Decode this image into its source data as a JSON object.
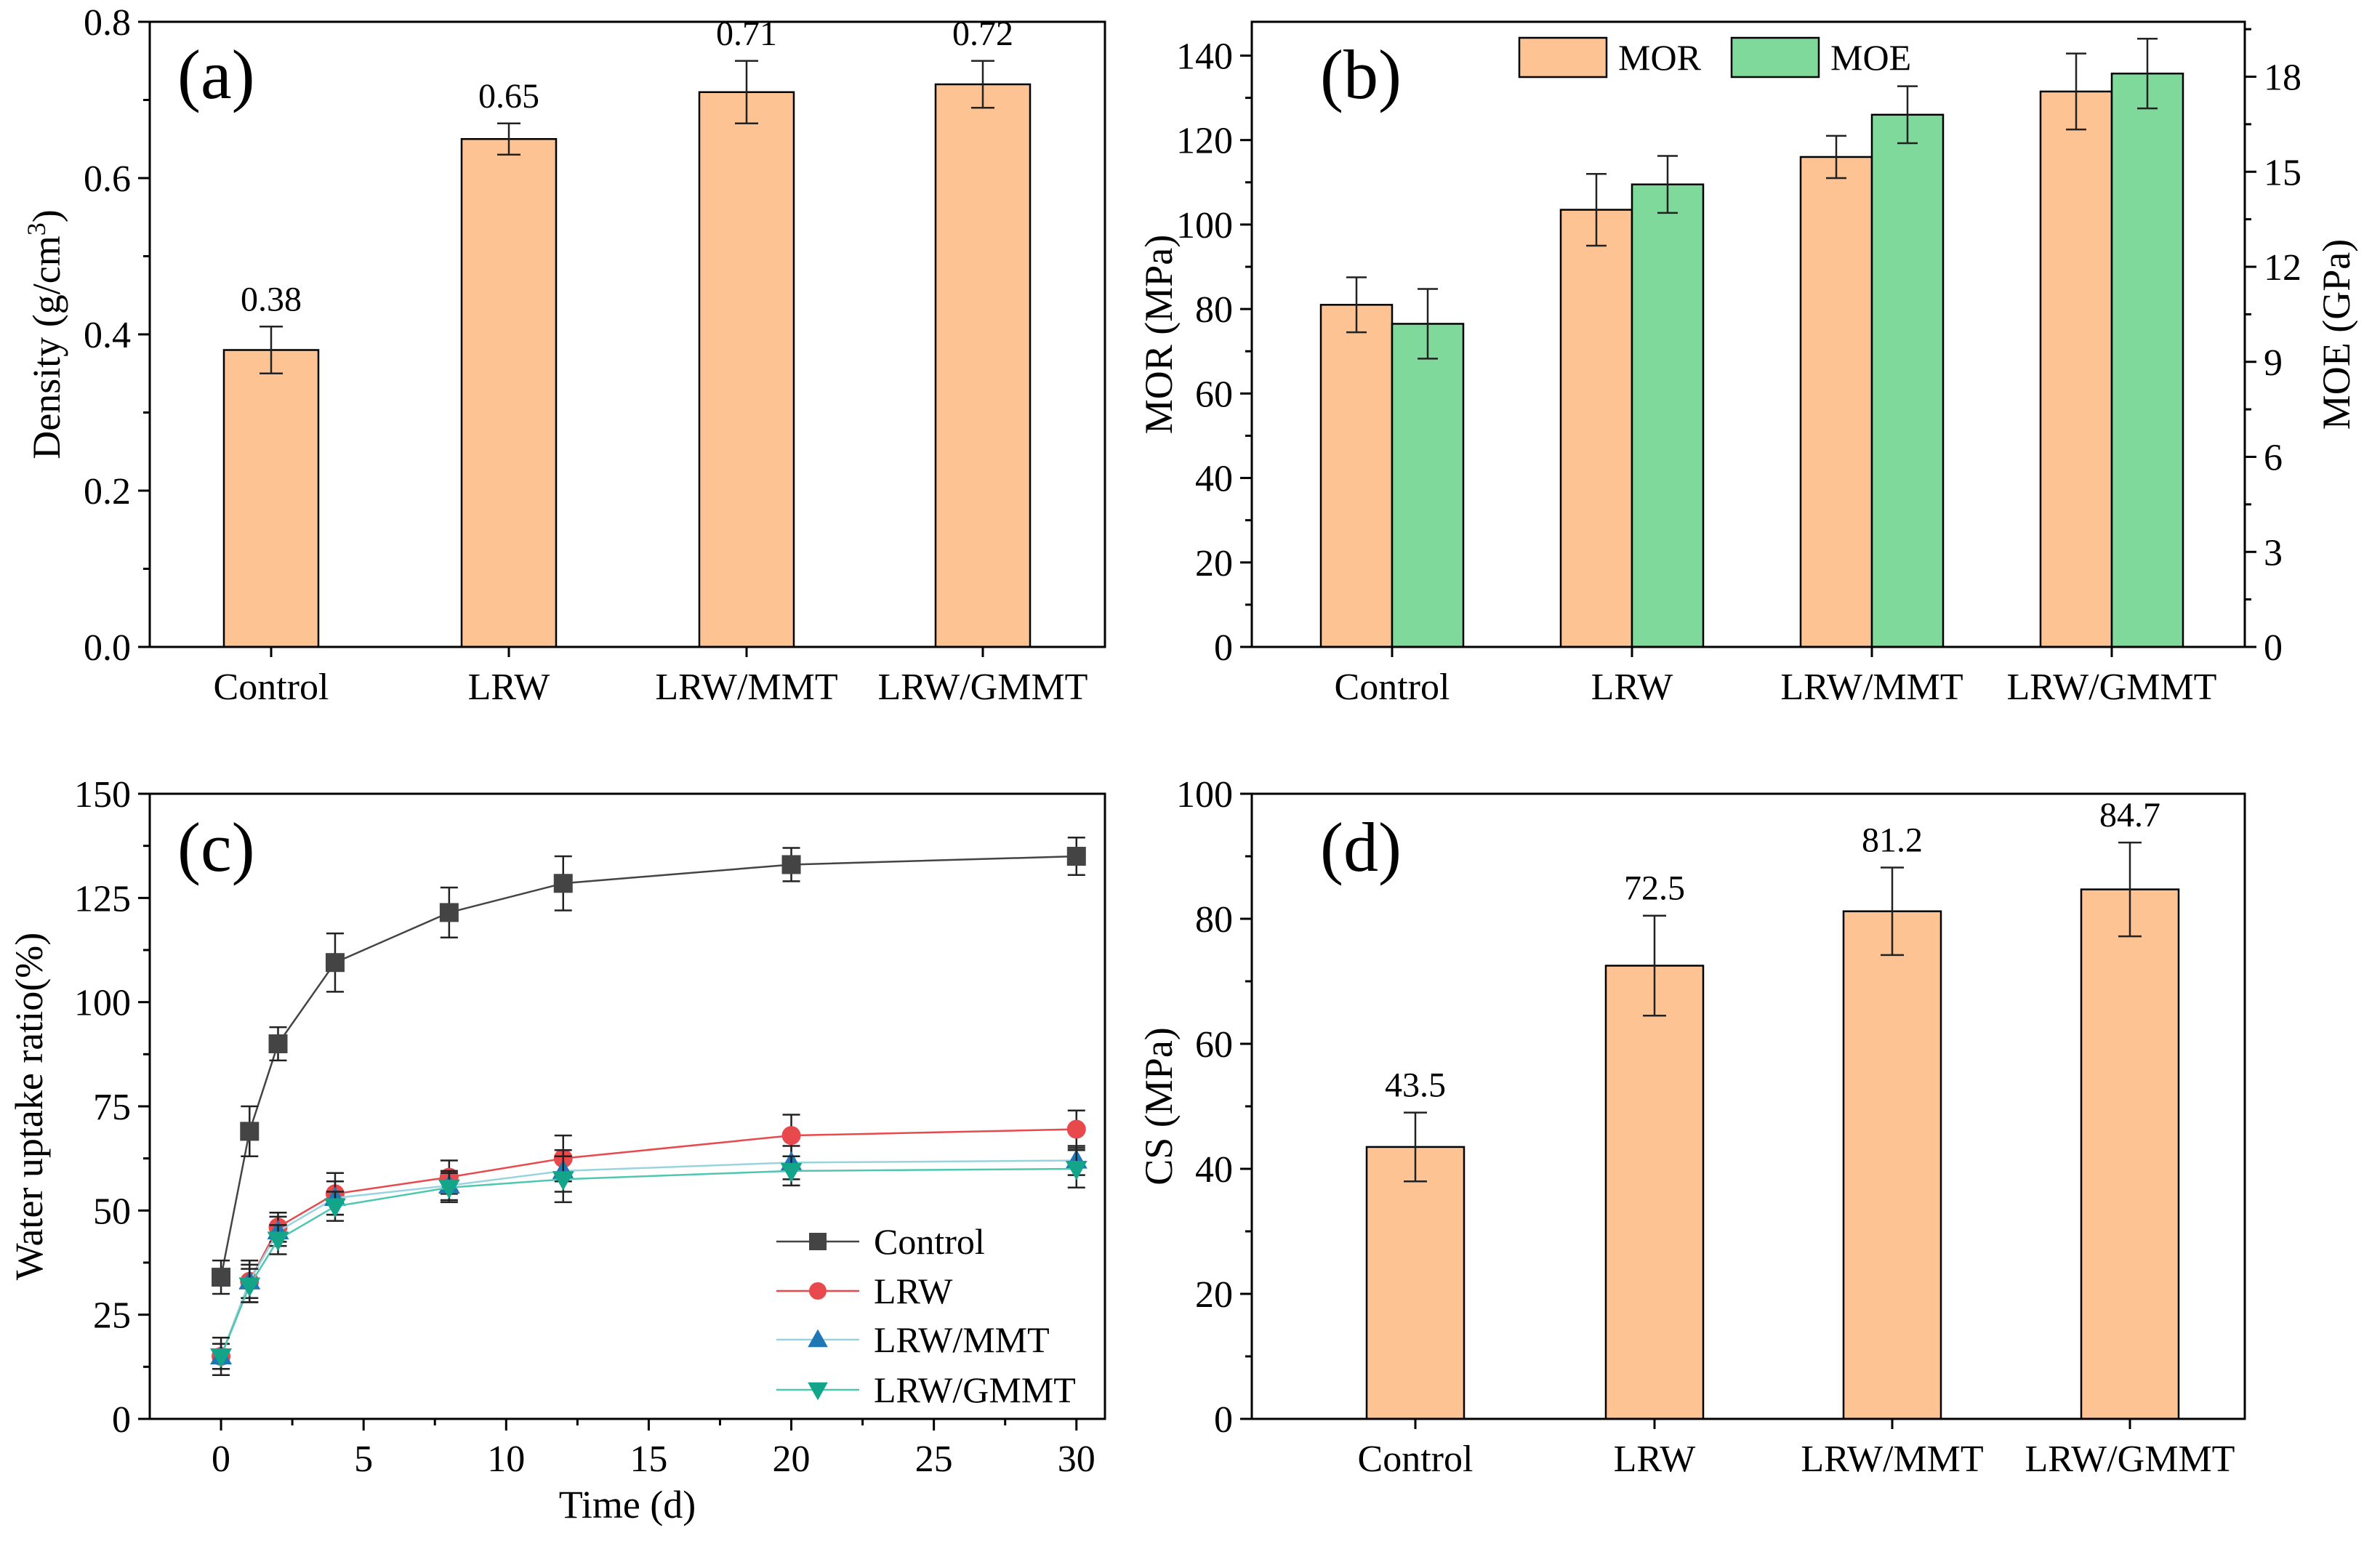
{
  "colors": {
    "bar_peach": "#FDC393",
    "bar_green": "#7ED99A",
    "control_line": "#444444",
    "lrw_line": "#E8494D",
    "lrwmmt_line": "#1F77B4",
    "lrwgmmt_line": "#12A58A",
    "lrwmmt_connector": "#9ad3e0",
    "lrwgmmt_connector": "#4fc7b0"
  },
  "chart_data": [
    {
      "id": "a",
      "type": "bar",
      "panel_label": "(a)",
      "categories": [
        "Control",
        "LRW",
        "LRW/MMT",
        "LRW/GMMT"
      ],
      "values": [
        0.38,
        0.65,
        0.71,
        0.72
      ],
      "errors": [
        0.03,
        0.02,
        0.04,
        0.03
      ],
      "data_labels": [
        "0.38",
        "0.65",
        "0.71",
        "0.72"
      ],
      "ylabel_main": "Density (g/cm",
      "ylabel_sup": "3",
      "ylabel_end": ")",
      "ylim": [
        0,
        0.8
      ],
      "yticks": [
        "0.0",
        "0.2",
        "0.4",
        "0.6",
        "0.8"
      ],
      "ytick_values": [
        0,
        0.2,
        0.4,
        0.6,
        0.8
      ]
    },
    {
      "id": "b",
      "type": "bar",
      "panel_label": "(b)",
      "categories": [
        "Control",
        "LRW",
        "LRW/MMT",
        "LRW/GMMT"
      ],
      "series": [
        {
          "name": "MOR",
          "values": [
            81,
            103.5,
            116,
            131.5
          ],
          "errors": [
            6.5,
            8.5,
            5,
            9
          ],
          "axis": "left"
        },
        {
          "name": "MOE",
          "values": [
            10.2,
            14.6,
            16.8,
            18.1
          ],
          "errors": [
            1.1,
            0.9,
            0.9,
            1.1
          ],
          "axis": "right"
        }
      ],
      "ylabel": "MOR (MPa)",
      "ylabel_right": "MOE (GPa)",
      "ylim": [
        0,
        148
      ],
      "ylim_right": [
        0,
        19.733
      ],
      "yticks": [
        "0",
        "20",
        "40",
        "60",
        "80",
        "100",
        "120",
        "140"
      ],
      "ytick_values": [
        0,
        20,
        40,
        60,
        80,
        100,
        120,
        140
      ],
      "yticks_right": [
        "0",
        "3",
        "6",
        "9",
        "12",
        "15",
        "18"
      ],
      "ytick_values_right": [
        0,
        3,
        6,
        9,
        12,
        15,
        18
      ],
      "legend": [
        "MOR",
        "MOE"
      ]
    },
    {
      "id": "c",
      "type": "line",
      "panel_label": "(c)",
      "xlabel": "Time (d)",
      "ylabel": "Water uptake ratio(%)",
      "xlim": [
        -2.5,
        31
      ],
      "ylim": [
        0,
        150
      ],
      "xticks": [
        "0",
        "5",
        "10",
        "15",
        "20",
        "25",
        "30"
      ],
      "xtick_values": [
        0,
        5,
        10,
        15,
        20,
        25,
        30
      ],
      "yticks": [
        "0",
        "25",
        "50",
        "75",
        "100",
        "125",
        "150"
      ],
      "ytick_values": [
        0,
        25,
        50,
        75,
        100,
        125,
        150
      ],
      "x": [
        0,
        1,
        2,
        4,
        8,
        12,
        20,
        30
      ],
      "series": [
        {
          "name": "Control",
          "marker": "square",
          "values": [
            34,
            69,
            90,
            109.5,
            121.5,
            128.5,
            133,
            135
          ],
          "errors": [
            4,
            6,
            4,
            7,
            6,
            6.5,
            4,
            4.5
          ]
        },
        {
          "name": "LRW",
          "marker": "circle",
          "values": [
            15,
            33,
            46,
            54,
            58,
            62.5,
            68,
            69.5
          ],
          "errors": [
            3,
            5,
            3.5,
            5,
            4,
            5.5,
            5,
            4.5
          ]
        },
        {
          "name": "LRW/MMT",
          "marker": "triangle-up",
          "values": [
            15,
            33,
            45,
            53,
            56,
            59.5,
            61.5,
            62
          ],
          "errors": [
            3,
            4,
            3.5,
            4,
            3.5,
            5,
            4,
            3.5
          ]
        },
        {
          "name": "LRW/GMMT",
          "marker": "triangle-down",
          "values": [
            15,
            32,
            43,
            51,
            55.5,
            57.5,
            59.5,
            60
          ],
          "errors": [
            4.5,
            4,
            3.5,
            3.5,
            3.5,
            5.5,
            3.5,
            4.5
          ]
        }
      ],
      "legend": [
        "Control",
        "LRW",
        "LRW/MMT",
        "LRW/GMMT"
      ]
    },
    {
      "id": "d",
      "type": "bar",
      "panel_label": "(d)",
      "categories": [
        "Control",
        "LRW",
        "LRW/MMT",
        "LRW/GMMT"
      ],
      "values": [
        43.5,
        72.5,
        81.2,
        84.7
      ],
      "errors": [
        5.5,
        8,
        7,
        7.5
      ],
      "data_labels": [
        "43.5",
        "72.5",
        "81.2",
        "84.7"
      ],
      "ylabel": "CS (MPa)",
      "ylim": [
        0,
        100
      ],
      "yticks": [
        "0",
        "20",
        "40",
        "60",
        "80",
        "100"
      ],
      "ytick_values": [
        0,
        20,
        40,
        60,
        80,
        100
      ]
    }
  ]
}
